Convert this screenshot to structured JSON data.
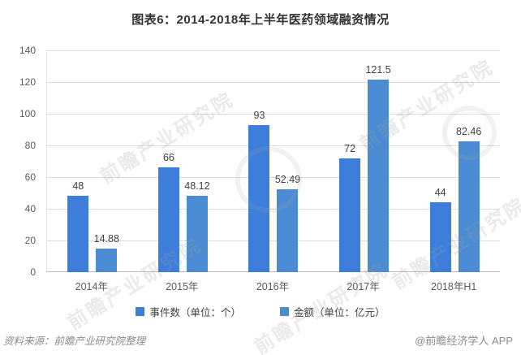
{
  "title": "图表6：2014-2018年上半年医药领域融资情况",
  "chart_data": {
    "type": "bar",
    "categories": [
      "2014年",
      "2015年",
      "2016年",
      "2017年",
      "2018年H1"
    ],
    "series": [
      {
        "name": "事件数（单位：个）",
        "values": [
          48,
          66,
          93,
          72,
          44
        ],
        "color": "#3d7edb"
      },
      {
        "name": "金额（单位：亿元）",
        "values": [
          14.88,
          48.12,
          52.49,
          121.5,
          82.46
        ],
        "color": "#4a8bd4"
      }
    ],
    "title": "图表6：2014-2018年上半年医药领域融资情况",
    "xlabel": "",
    "ylabel": "",
    "ylim": [
      0,
      140
    ],
    "yticks": [
      0,
      20,
      40,
      60,
      80,
      100,
      120,
      140
    ],
    "grid": true,
    "legend_position": "bottom",
    "data_labels": true
  },
  "footer": {
    "source": "资料来源：前瞻产业研究院整理",
    "credit": "@前瞻经济学人 APP"
  },
  "watermark": {
    "text": "前瞻产业研究院"
  }
}
